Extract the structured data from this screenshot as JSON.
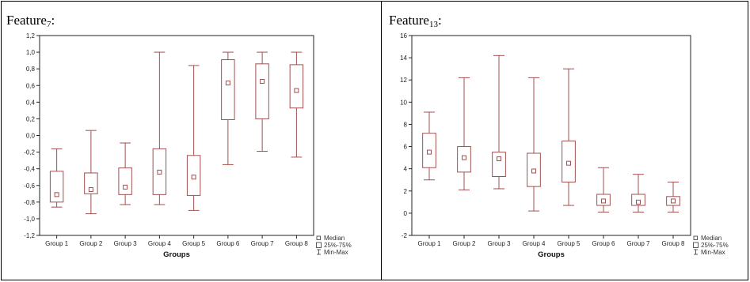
{
  "chart_data": [
    {
      "type": "box",
      "title_main": "Feature",
      "title_sub": "7",
      "title_suffix": ":",
      "xlabel": "Groups",
      "ylabel": "",
      "ylim": [
        -1.2,
        1.2
      ],
      "yticks": [
        "-1,2",
        "-1,0",
        "-0,8",
        "-0,6",
        "-0,4",
        "-0,2",
        "0,0",
        "0,2",
        "0,4",
        "0,6",
        "0,8",
        "1,0",
        "1,2"
      ],
      "ytick_values": [
        -1.2,
        -1.0,
        -0.8,
        -0.6,
        -0.4,
        -0.2,
        0.0,
        0.2,
        0.4,
        0.6,
        0.8,
        1.0,
        1.2
      ],
      "categories": [
        "Group 1",
        "Group 2",
        "Group 3",
        "Group 4",
        "Group 5",
        "Group 6",
        "Group 7",
        "Group 8"
      ],
      "boxes": [
        {
          "min": -0.86,
          "q1": -0.8,
          "median": -0.71,
          "q3": -0.43,
          "max": -0.16
        },
        {
          "min": -0.94,
          "q1": -0.7,
          "median": -0.65,
          "q3": -0.45,
          "max": 0.06
        },
        {
          "min": -0.83,
          "q1": -0.71,
          "median": -0.62,
          "q3": -0.39,
          "max": -0.09
        },
        {
          "min": -0.83,
          "q1": -0.71,
          "median": -0.44,
          "q3": -0.16,
          "max": 1.0
        },
        {
          "min": -0.9,
          "q1": -0.72,
          "median": -0.5,
          "q3": -0.24,
          "max": 0.84
        },
        {
          "min": -0.35,
          "q1": 0.19,
          "median": 0.63,
          "q3": 0.91,
          "max": 1.0
        },
        {
          "min": -0.19,
          "q1": 0.2,
          "median": 0.65,
          "q3": 0.86,
          "max": 1.0
        },
        {
          "min": -0.26,
          "q1": 0.33,
          "median": 0.54,
          "q3": 0.85,
          "max": 1.0
        }
      ],
      "legend": [
        "Median",
        "25%-75%",
        "Min-Max"
      ],
      "legend_position": "bottom-right",
      "grid": false,
      "colors": {
        "box": "#a05050",
        "background": "#ffffff"
      }
    },
    {
      "type": "box",
      "title_main": "Feature",
      "title_sub": "13",
      "title_suffix": ":",
      "xlabel": "Groups",
      "ylabel": "",
      "ylim": [
        -2,
        16
      ],
      "yticks": [
        "-2",
        "0",
        "2",
        "4",
        "6",
        "8",
        "10",
        "12",
        "14",
        "16"
      ],
      "ytick_values": [
        -2,
        0,
        2,
        4,
        6,
        8,
        10,
        12,
        14,
        16
      ],
      "categories": [
        "Group 1",
        "Group 2",
        "Group 3",
        "Group 4",
        "Group 5",
        "Group 6",
        "Group 7",
        "Group 8"
      ],
      "boxes": [
        {
          "min": 3.0,
          "q1": 4.1,
          "median": 5.5,
          "q3": 7.2,
          "max": 9.1
        },
        {
          "min": 2.1,
          "q1": 3.7,
          "median": 5.0,
          "q3": 6.0,
          "max": 12.2
        },
        {
          "min": 2.2,
          "q1": 3.3,
          "median": 4.9,
          "q3": 5.5,
          "max": 14.2
        },
        {
          "min": 0.2,
          "q1": 2.4,
          "median": 3.8,
          "q3": 5.4,
          "max": 12.2
        },
        {
          "min": 0.7,
          "q1": 2.8,
          "median": 4.5,
          "q3": 6.5,
          "max": 13.0
        },
        {
          "min": 0.1,
          "q1": 0.7,
          "median": 1.1,
          "q3": 1.7,
          "max": 4.1
        },
        {
          "min": 0.1,
          "q1": 0.7,
          "median": 1.0,
          "q3": 1.7,
          "max": 3.5
        },
        {
          "min": 0.1,
          "q1": 0.7,
          "median": 1.1,
          "q3": 1.5,
          "max": 2.8
        }
      ],
      "legend": [
        "Median",
        "25%-75%",
        "Min-Max"
      ],
      "legend_position": "bottom-right",
      "grid": false,
      "colors": {
        "box": "#a05050",
        "background": "#ffffff"
      }
    }
  ]
}
